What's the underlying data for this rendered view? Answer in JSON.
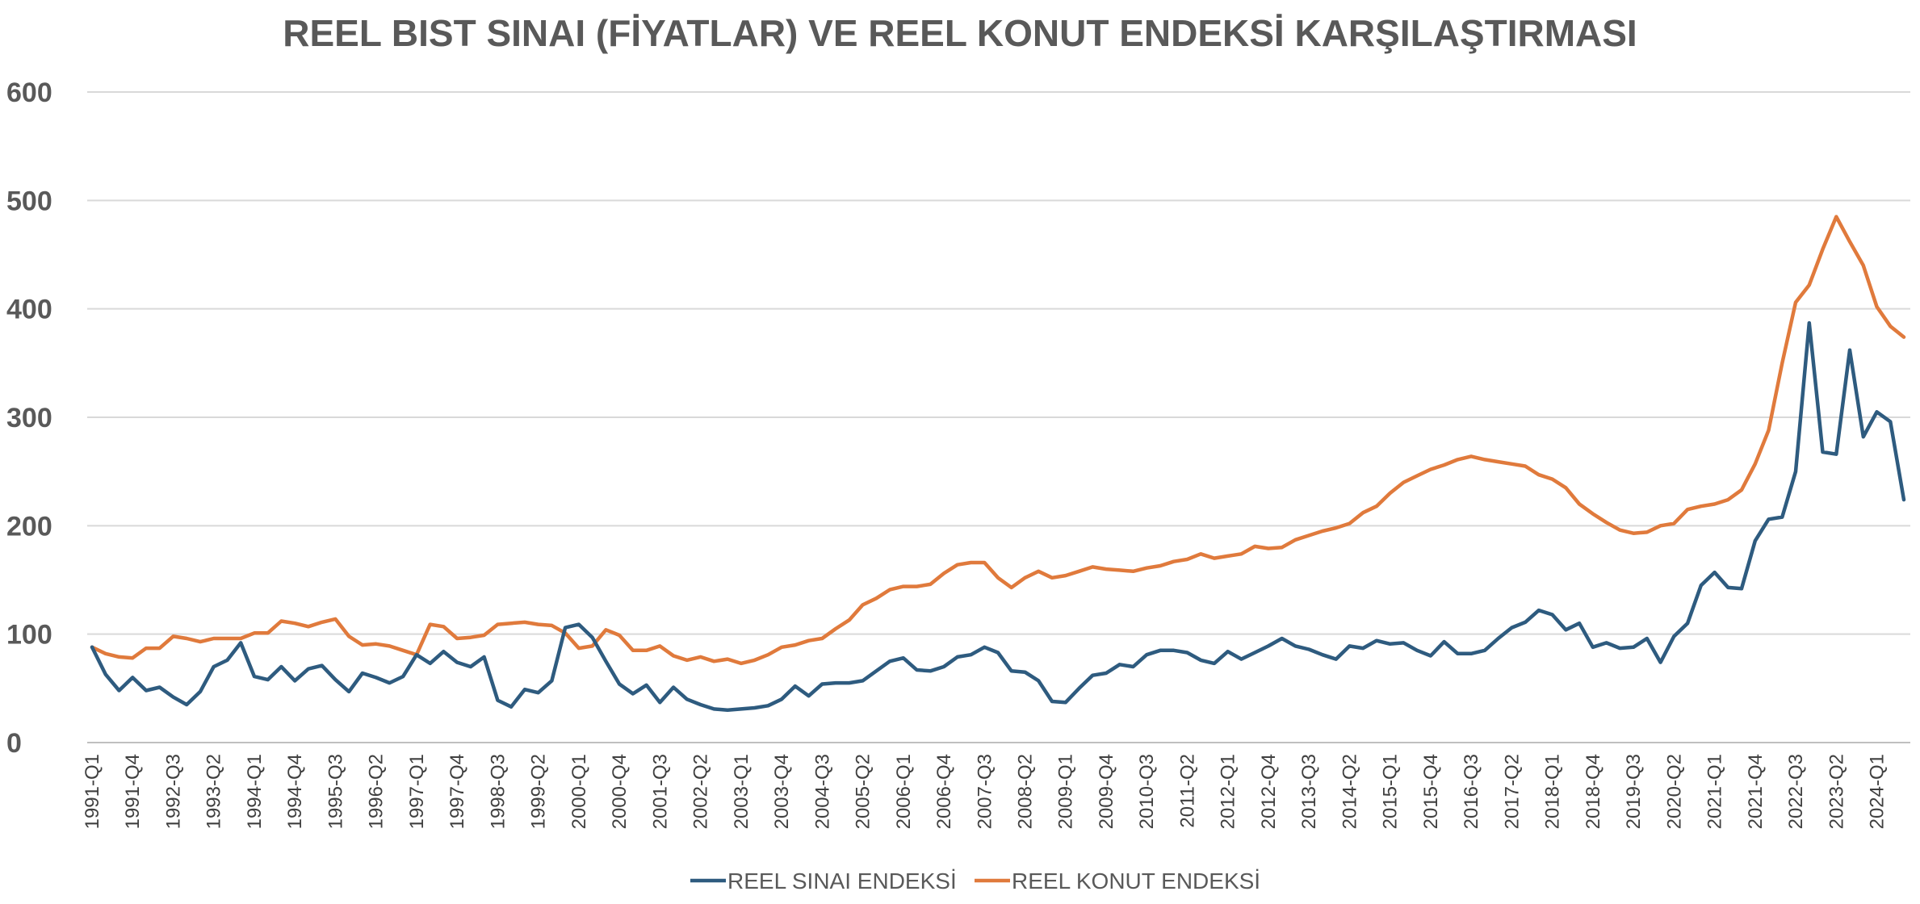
{
  "chart_data": {
    "type": "line",
    "title": "REEL BIST SINAI (FİYATLAR) VE REEL KONUT ENDEKSİ KARŞILAŞTIRMASI",
    "xlabel": "",
    "ylabel": "",
    "ylim": [
      0,
      600
    ],
    "yticks": [
      "0",
      "100",
      "200",
      "300",
      "400",
      "500",
      "600"
    ],
    "grid": true,
    "legend_position": "bottom",
    "x_start": "1991-Q1",
    "x_tick_labels": [
      "1991-Q1",
      "1991-Q4",
      "1992-Q3",
      "1993-Q2",
      "1994-Q1",
      "1994-Q4",
      "1995-Q3",
      "1996-Q2",
      "1997-Q1",
      "1997-Q4",
      "1998-Q3",
      "1999-Q2",
      "2000-Q1",
      "2000-Q4",
      "2001-Q3",
      "2002-Q2",
      "2003-Q1",
      "2003-Q4",
      "2004-Q3",
      "2005-Q2",
      "2006-Q1",
      "2006-Q4",
      "2007-Q3",
      "2008-Q2",
      "2009-Q1",
      "2009-Q4",
      "2010-Q3",
      "2011-Q2",
      "2012-Q1",
      "2012-Q4",
      "2013-Q3",
      "2014-Q2",
      "2015-Q1",
      "2015-Q4",
      "2016-Q3",
      "2017-Q2",
      "2018-Q1",
      "2018-Q4",
      "2019-Q3",
      "2020-Q2",
      "2021-Q1",
      "2021-Q4",
      "2022-Q3",
      "2023-Q2",
      "2024-Q1"
    ],
    "series": [
      {
        "name": "REEL SINAI ENDEKSİ",
        "color": "#2E5B7F",
        "values": [
          88,
          63,
          48,
          60,
          48,
          51,
          42,
          35,
          47,
          70,
          76,
          92,
          61,
          58,
          70,
          57,
          68,
          71,
          58,
          47,
          64,
          60,
          55,
          61,
          81,
          73,
          84,
          74,
          70,
          79,
          39,
          33,
          49,
          46,
          57,
          106,
          109,
          97,
          75,
          54,
          45,
          53,
          37,
          51,
          40,
          35,
          31,
          30,
          31,
          32,
          34,
          40,
          52,
          43,
          54,
          55,
          55,
          57,
          66,
          75,
          78,
          67,
          66,
          70,
          79,
          81,
          88,
          83,
          66,
          65,
          57,
          38,
          37,
          50,
          62,
          64,
          72,
          70,
          81,
          85,
          85,
          83,
          76,
          73,
          84,
          77,
          83,
          89,
          96,
          89,
          86,
          81,
          77,
          89,
          87,
          94,
          91,
          92,
          85,
          80,
          93,
          82,
          82,
          85,
          96,
          106,
          111,
          122,
          118,
          104,
          110,
          88,
          92,
          87,
          88,
          96,
          74,
          98,
          110,
          145,
          157,
          143,
          142,
          186,
          206,
          208,
          250,
          387,
          268,
          266,
          362,
          282,
          305,
          296,
          224
        ]
      },
      {
        "name": "REEL KONUT ENDEKSİ",
        "color": "#E07A3C",
        "values": [
          88,
          82,
          79,
          78,
          87,
          87,
          98,
          96,
          93,
          96,
          96,
          96,
          101,
          101,
          112,
          110,
          107,
          111,
          114,
          98,
          90,
          91,
          89,
          85,
          81,
          109,
          107,
          96,
          97,
          99,
          109,
          110,
          111,
          109,
          108,
          101,
          87,
          89,
          104,
          99,
          85,
          85,
          89,
          80,
          76,
          79,
          75,
          77,
          73,
          76,
          81,
          88,
          90,
          94,
          96,
          105,
          113,
          127,
          133,
          141,
          144,
          144,
          146,
          156,
          164,
          166,
          166,
          152,
          143,
          152,
          158,
          152,
          154,
          158,
          162,
          160,
          159,
          158,
          161,
          163,
          167,
          169,
          174,
          170,
          172,
          174,
          181,
          179,
          180,
          187,
          191,
          195,
          198,
          202,
          212,
          218,
          230,
          240,
          246,
          252,
          256,
          261,
          264,
          261,
          259,
          257,
          255,
          247,
          243,
          235,
          220,
          211,
          203,
          196,
          193,
          194,
          200,
          202,
          215,
          218,
          220,
          224,
          233,
          257,
          288,
          350,
          406,
          422,
          455,
          485,
          462,
          440,
          402,
          384,
          374
        ]
      }
    ]
  }
}
